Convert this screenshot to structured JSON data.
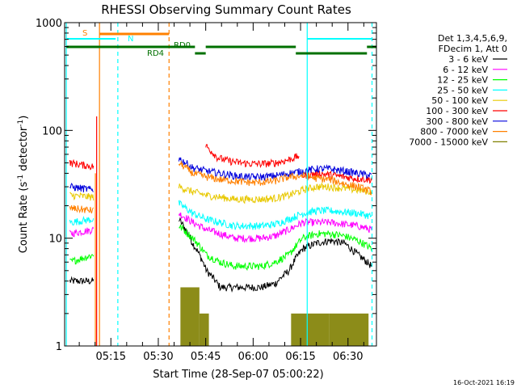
{
  "chart_data": {
    "type": "line",
    "title": "RHESSI Observing Summary Count Rates",
    "xlabel": "Start Time (28-Sep-07 05:00:22)",
    "ylabel_main": "Count Rate (s",
    "ylabel_sup1": "-1",
    "ylabel_mid": " detector",
    "ylabel_sup2": "-1",
    "ylabel_end": ")",
    "yscale": "log",
    "ylim": [
      1,
      1000
    ],
    "xlim_minutes": [
      300.37,
      399.0
    ],
    "y_ticks": [
      {
        "value": 1,
        "label": "1"
      },
      {
        "value": 10,
        "label": "10"
      },
      {
        "value": 100,
        "label": "100"
      },
      {
        "value": 1000,
        "label": "1000"
      }
    ],
    "x_ticks": [
      {
        "minute": 315,
        "label": "05:15"
      },
      {
        "minute": 330,
        "label": "05:30"
      },
      {
        "minute": 345,
        "label": "05:45"
      },
      {
        "minute": 360,
        "label": "06:00"
      },
      {
        "minute": 375,
        "label": "06:15"
      },
      {
        "minute": 390,
        "label": "06:30"
      }
    ],
    "legend": {
      "placement": "right",
      "header": [
        "Det 1,3,4,5,6,9,",
        "FDecim 1, Att 0"
      ],
      "entries": [
        {
          "label": "3 - 6 keV",
          "color": "#000000"
        },
        {
          "label": "6 - 12 keV",
          "color": "#ff00ff"
        },
        {
          "label": "12 - 25 keV",
          "color": "#00ff00"
        },
        {
          "label": "25 - 50 keV",
          "color": "#00ffff"
        },
        {
          "label": "50 - 100 keV",
          "color": "#e8c800"
        },
        {
          "label": "100 - 300 keV",
          "color": "#ff0000"
        },
        {
          "label": "300 - 800 keV",
          "color": "#0000dd"
        },
        {
          "label": "800 - 7000 keV",
          "color": "#ff8000"
        },
        {
          "label": "7000 - 15000 keV",
          "color": "#808000"
        }
      ]
    },
    "flags": [
      {
        "label": "S",
        "color": "#ff8000"
      },
      {
        "label": "N",
        "color": "#00ffff"
      },
      {
        "label": "RD0",
        "color": "#007000"
      },
      {
        "label": "RD4",
        "color": "#007000"
      }
    ],
    "series": [
      {
        "color": "#000000",
        "segments": [
          {
            "start": 302.0,
            "end": 309.5,
            "levels": [
              4.0,
              4.0
            ]
          },
          {
            "start": 336.5,
            "end": 397.5,
            "levels": [
              15,
              9,
              5,
              3.5,
              3.5,
              3.5,
              3.5,
              3.8,
              5,
              8,
              9,
              9.5,
              9,
              7,
              5.5
            ]
          }
        ]
      },
      {
        "color": "#ff00ff",
        "segments": [
          {
            "start": 302.0,
            "end": 309.5,
            "levels": [
              11,
              12
            ]
          },
          {
            "start": 336.5,
            "end": 397.5,
            "levels": [
              17,
              14,
              12,
              11,
              10,
              10,
              10,
              10.5,
              12,
              14,
              14,
              14,
              13.5,
              13,
              12
            ]
          }
        ]
      },
      {
        "color": "#00ff00",
        "segments": [
          {
            "start": 302.0,
            "end": 309.5,
            "levels": [
              6,
              7
            ]
          },
          {
            "start": 336.5,
            "end": 397.5,
            "levels": [
              13,
              10,
              7,
              6,
              5.5,
              5.5,
              5.5,
              6,
              7,
              10,
              11,
              11,
              10.5,
              9.5,
              8
            ]
          }
        ]
      },
      {
        "color": "#00ffff",
        "segments": [
          {
            "start": 302.0,
            "end": 309.5,
            "levels": [
              14,
              15
            ]
          },
          {
            "start": 336.5,
            "end": 397.5,
            "levels": [
              21,
              17,
              15,
              14,
              13,
              13,
              13,
              13.5,
              15,
              17,
              18,
              18,
              17.5,
              17,
              16
            ]
          }
        ]
      },
      {
        "color": "#e8c800",
        "segments": [
          {
            "start": 302.0,
            "end": 309.5,
            "levels": [
              25,
              24
            ]
          },
          {
            "start": 336.5,
            "end": 397.5,
            "levels": [
              30,
              27,
              25,
              24,
              23,
              23,
              23,
              23.5,
              25,
              28,
              30,
              30,
              29,
              28,
              27
            ]
          }
        ]
      },
      {
        "color": "#ff0000",
        "segments": [
          {
            "start": 302.0,
            "end": 309.5,
            "levels": [
              50,
              46
            ]
          },
          {
            "start": 345.0,
            "end": 374.5,
            "levels": [
              72,
              56,
              52,
              50,
              49,
              49,
              50,
              53,
              58
            ]
          },
          {
            "start": 375.0,
            "end": 397.5,
            "levels": [
              38,
              40,
              38,
              36,
              35
            ]
          }
        ]
      },
      {
        "color": "#0000dd",
        "segments": [
          {
            "start": 302.0,
            "end": 309.5,
            "levels": [
              30,
              28
            ]
          },
          {
            "start": 336.5,
            "end": 397.5,
            "levels": [
              55,
              45,
              42,
              40,
              38,
              37,
              37,
              38,
              40,
              42,
              44,
              44,
              42,
              40,
              38
            ]
          }
        ]
      },
      {
        "color": "#ff8000",
        "segments": [
          {
            "start": 302.0,
            "end": 309.5,
            "levels": [
              19,
              18
            ]
          },
          {
            "start": 336.5,
            "end": 397.5,
            "levels": [
              50,
              40,
              37,
              35,
              34,
              33,
              33,
              34,
              37,
              38,
              36,
              35,
              32,
              30,
              27
            ]
          }
        ]
      }
    ]
  },
  "footer": {
    "timestamp": "16-Oct-2021 16:19"
  }
}
